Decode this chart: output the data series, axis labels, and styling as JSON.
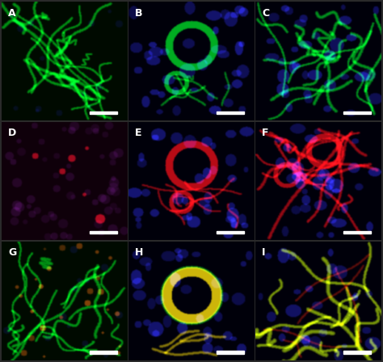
{
  "panels": [
    {
      "label": "A",
      "row": 0,
      "col": 0,
      "bg": [
        0,
        0.04,
        0
      ],
      "primary_color": [
        0,
        0.7,
        0.1
      ],
      "secondary_color": [
        0.1,
        0.1,
        0.6
      ],
      "style": "green_web"
    },
    {
      "label": "B",
      "row": 0,
      "col": 1,
      "bg": [
        0,
        0,
        0.04
      ],
      "primary_color": [
        0,
        0.75,
        0.1
      ],
      "secondary_color": [
        0.15,
        0.15,
        0.75
      ],
      "style": "green_ring_blue"
    },
    {
      "label": "C",
      "row": 0,
      "col": 2,
      "bg": [
        0,
        0,
        0.04
      ],
      "primary_color": [
        0,
        0.75,
        0.1
      ],
      "secondary_color": [
        0.15,
        0.15,
        0.75
      ],
      "style": "green_web_blue"
    },
    {
      "label": "D",
      "row": 1,
      "col": 0,
      "bg": [
        0.06,
        0,
        0.04
      ],
      "primary_color": [
        0.7,
        0.05,
        0.1
      ],
      "secondary_color": [
        0.2,
        0.1,
        0.5
      ],
      "style": "red_dots"
    },
    {
      "label": "E",
      "row": 1,
      "col": 1,
      "bg": [
        0,
        0,
        0.04
      ],
      "primary_color": [
        0.8,
        0.05,
        0.05
      ],
      "secondary_color": [
        0.15,
        0.15,
        0.75
      ],
      "style": "red_ring_blue"
    },
    {
      "label": "F",
      "row": 1,
      "col": 2,
      "bg": [
        0,
        0,
        0.04
      ],
      "primary_color": [
        0.8,
        0.05,
        0.05
      ],
      "secondary_color": [
        0.15,
        0.15,
        0.75
      ],
      "style": "red_web_blue"
    },
    {
      "label": "G",
      "row": 2,
      "col": 0,
      "bg": [
        0,
        0.04,
        0
      ],
      "primary_color": [
        0,
        0.7,
        0.1
      ],
      "secondary_color": [
        0.7,
        0.3,
        0.05
      ],
      "style": "green_web_orange"
    },
    {
      "label": "H",
      "row": 2,
      "col": 1,
      "bg": [
        0,
        0,
        0.04
      ],
      "primary_color": [
        0.85,
        0.75,
        0.0
      ],
      "secondary_color": [
        0.15,
        0.15,
        0.75
      ],
      "style": "yellow_ring_blue"
    },
    {
      "label": "I",
      "row": 2,
      "col": 2,
      "bg": [
        0,
        0,
        0.04
      ],
      "primary_color": [
        0.6,
        0.75,
        0.0
      ],
      "secondary_color": [
        0.15,
        0.15,
        0.75
      ],
      "style": "yellow_web_blue"
    }
  ],
  "nrows": 3,
  "ncols": 3
}
